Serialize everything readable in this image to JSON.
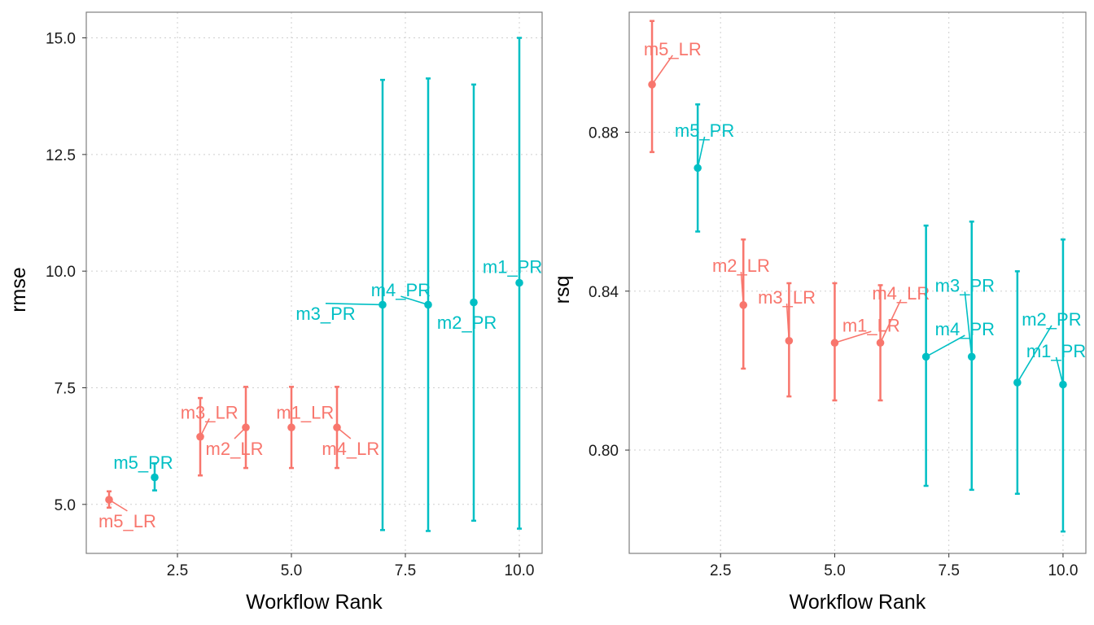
{
  "colors": {
    "LR": "#F8766D",
    "PR": "#00BFC4"
  },
  "chart_data": [
    {
      "type": "scatter",
      "subtype": "pointrange",
      "xlabel": "Workflow Rank",
      "ylabel": "rmse",
      "xlim": [
        0.5,
        10.5
      ],
      "ylim": [
        3.95,
        15.55
      ],
      "xticks": [
        2.5,
        5.0,
        7.5,
        10.0
      ],
      "xtick_labels": [
        "2.5",
        "5.0",
        "7.5",
        "10.0"
      ],
      "yticks": [
        5.0,
        7.5,
        10.0,
        12.5,
        15.0
      ],
      "ytick_labels": [
        "5.0",
        "7.5",
        "10.0",
        "12.5",
        "15.0"
      ],
      "grid": true,
      "points": [
        {
          "x": 1,
          "y": 5.1,
          "low": 4.93,
          "high": 5.28,
          "group": "LR",
          "label": "m5_LR",
          "label_x": 1.4,
          "label_y": 4.65
        },
        {
          "x": 2,
          "y": 5.58,
          "low": 5.3,
          "high": 5.88,
          "group": "PR",
          "label": "m5_PR",
          "label_x": 1.75,
          "label_y": 5.9
        },
        {
          "x": 3,
          "y": 6.45,
          "low": 5.62,
          "high": 7.28,
          "group": "LR",
          "label": "m3_LR",
          "label_x": 3.2,
          "label_y": 6.98
        },
        {
          "x": 4,
          "y": 6.65,
          "low": 5.78,
          "high": 7.52,
          "group": "LR",
          "label": "m2_LR",
          "label_x": 3.75,
          "label_y": 6.2
        },
        {
          "x": 5,
          "y": 6.65,
          "low": 5.78,
          "high": 7.52,
          "group": "LR",
          "label": "m1_LR",
          "label_x": 5.3,
          "label_y": 6.98
        },
        {
          "x": 6,
          "y": 6.65,
          "low": 5.78,
          "high": 7.52,
          "group": "LR",
          "label": "m4_LR",
          "label_x": 6.3,
          "label_y": 6.2
        },
        {
          "x": 7,
          "y": 9.28,
          "low": 4.45,
          "high": 14.1,
          "group": "PR",
          "label": "m3_PR",
          "label_x": 5.75,
          "label_y": 9.1
        },
        {
          "x": 8,
          "y": 9.28,
          "low": 4.43,
          "high": 14.13,
          "group": "PR",
          "label": "m4_PR",
          "label_x": 7.4,
          "label_y": 9.6
        },
        {
          "x": 9,
          "y": 9.33,
          "low": 4.65,
          "high": 14.0,
          "group": "PR",
          "label": "m2_PR",
          "label_x": 8.85,
          "label_y": 8.9
        },
        {
          "x": 10,
          "y": 9.75,
          "low": 4.48,
          "high": 15.0,
          "group": "PR",
          "label": "m1_PR",
          "label_x": 9.85,
          "label_y": 10.1
        }
      ]
    },
    {
      "type": "scatter",
      "subtype": "pointrange",
      "xlabel": "Workflow Rank",
      "ylabel": "rsq",
      "xlim": [
        0.5,
        10.5
      ],
      "ylim": [
        0.774,
        0.9102
      ],
      "xticks": [
        2.5,
        5.0,
        7.5,
        10.0
      ],
      "xtick_labels": [
        "2.5",
        "5.0",
        "7.5",
        "10.0"
      ],
      "yticks": [
        0.8,
        0.84,
        0.88
      ],
      "ytick_labels": [
        "0.80",
        "0.84",
        "0.88"
      ],
      "grid": true,
      "points": [
        {
          "x": 1,
          "y": 0.892,
          "low": 0.875,
          "high": 0.908,
          "group": "LR",
          "label": "m5_LR",
          "label_x": 1.45,
          "label_y": 0.901
        },
        {
          "x": 2,
          "y": 0.871,
          "low": 0.855,
          "high": 0.887,
          "group": "PR",
          "label": "m5_PR",
          "label_x": 2.15,
          "label_y": 0.8805
        },
        {
          "x": 3,
          "y": 0.8365,
          "low": 0.8205,
          "high": 0.853,
          "group": "LR",
          "label": "m2_LR",
          "label_x": 2.95,
          "label_y": 0.8465
        },
        {
          "x": 4,
          "y": 0.8275,
          "low": 0.8135,
          "high": 0.842,
          "group": "LR",
          "label": "m3_LR",
          "label_x": 3.95,
          "label_y": 0.8385
        },
        {
          "x": 5,
          "y": 0.827,
          "low": 0.8125,
          "high": 0.842,
          "group": "LR",
          "label": "m1_LR",
          "label_x": 5.8,
          "label_y": 0.8315
        },
        {
          "x": 6,
          "y": 0.827,
          "low": 0.8125,
          "high": 0.8415,
          "group": "LR",
          "label": "m4_LR",
          "label_x": 6.45,
          "label_y": 0.8395
        },
        {
          "x": 7,
          "y": 0.8235,
          "low": 0.791,
          "high": 0.8565,
          "group": "PR",
          "label": "m4_PR",
          "label_x": 7.85,
          "label_y": 0.8305
        },
        {
          "x": 8,
          "y": 0.8235,
          "low": 0.79,
          "high": 0.8575,
          "group": "PR",
          "label": "m3_PR",
          "label_x": 7.85,
          "label_y": 0.8415
        },
        {
          "x": 9,
          "y": 0.817,
          "low": 0.789,
          "high": 0.845,
          "group": "PR",
          "label": "m2_PR",
          "label_x": 9.75,
          "label_y": 0.833
        },
        {
          "x": 10,
          "y": 0.8165,
          "low": 0.7795,
          "high": 0.853,
          "group": "PR",
          "label": "m1_PR",
          "label_x": 9.85,
          "label_y": 0.825
        }
      ]
    }
  ]
}
